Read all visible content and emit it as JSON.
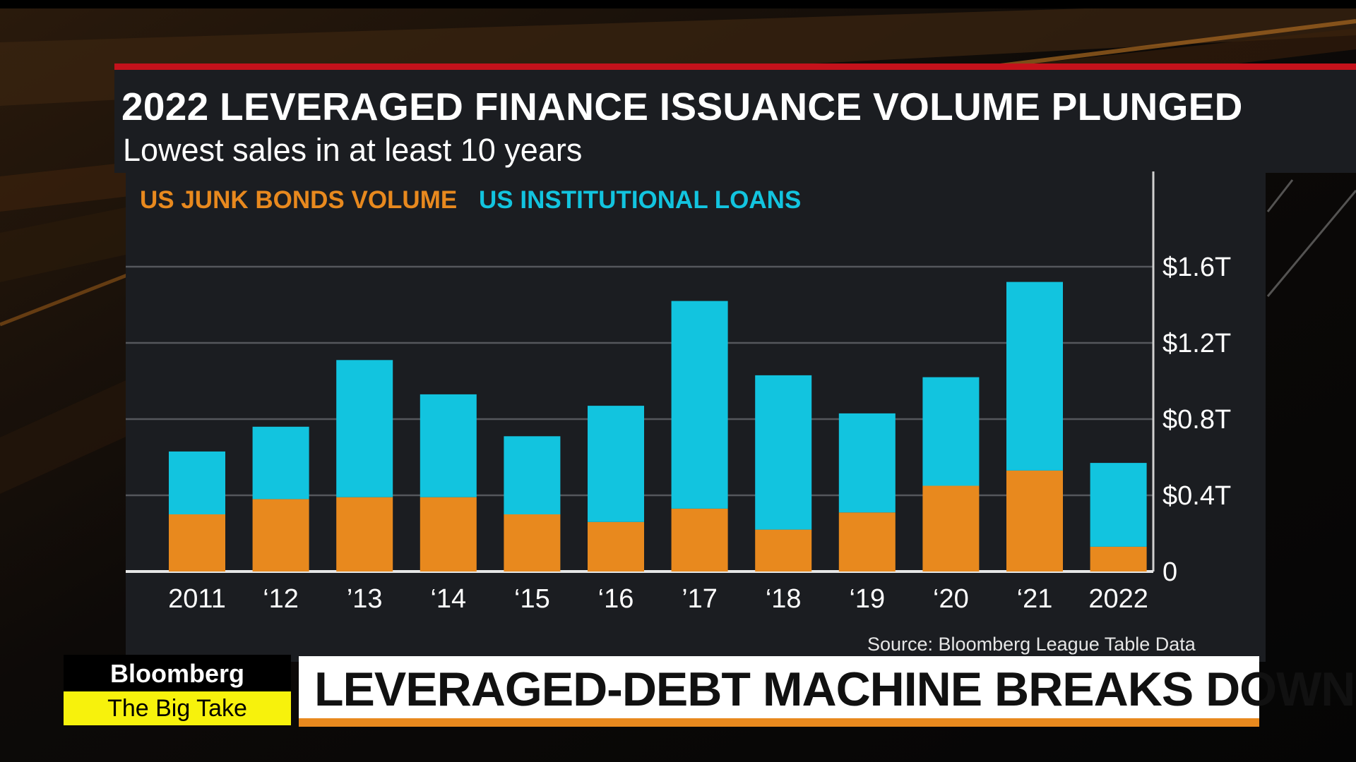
{
  "header": {
    "title": "2022 LEVERAGED FINANCE ISSUANCE VOLUME PLUNGED",
    "subtitle": "Lowest sales in at least 10 years"
  },
  "chart_data": {
    "type": "bar",
    "stacked": true,
    "categories": [
      "2011",
      "‘12",
      "’13",
      "‘14",
      "‘15",
      "‘16",
      "’17",
      "‘18",
      "‘19",
      "‘20",
      "‘21",
      "2022"
    ],
    "series": [
      {
        "name": "US JUNK BONDS VOLUME",
        "color": "#e8891e",
        "values": [
          0.3,
          0.38,
          0.39,
          0.39,
          0.3,
          0.26,
          0.33,
          0.22,
          0.31,
          0.45,
          0.53,
          0.13
        ]
      },
      {
        "name": "US INSTITUTIONAL LOANS",
        "color": "#12c4df",
        "values": [
          0.33,
          0.38,
          0.72,
          0.54,
          0.41,
          0.61,
          1.09,
          0.81,
          0.52,
          0.57,
          0.99,
          0.44
        ]
      }
    ],
    "yticks": [
      {
        "value": 0,
        "label": "0"
      },
      {
        "value": 0.4,
        "label": "$0.4T"
      },
      {
        "value": 0.8,
        "label": "$0.8T"
      },
      {
        "value": 1.2,
        "label": "$1.2T"
      },
      {
        "value": 1.6,
        "label": "$1.6T"
      }
    ],
    "ylim": [
      0,
      1.6
    ],
    "grid": true,
    "legend_position": "top-left",
    "source": "Source: Bloomberg League Table Data"
  },
  "branding": {
    "network": "Bloomberg",
    "show": "The Big Take"
  },
  "lower_third": {
    "headline": "LEVERAGED-DEBT MACHINE BREAKS DOWN"
  },
  "colors": {
    "accent_red": "#c4121b",
    "accent_orange": "#e8891e",
    "accent_cyan": "#12c4df",
    "panel": "#1b1d21",
    "show_yellow": "#f7f20c"
  }
}
